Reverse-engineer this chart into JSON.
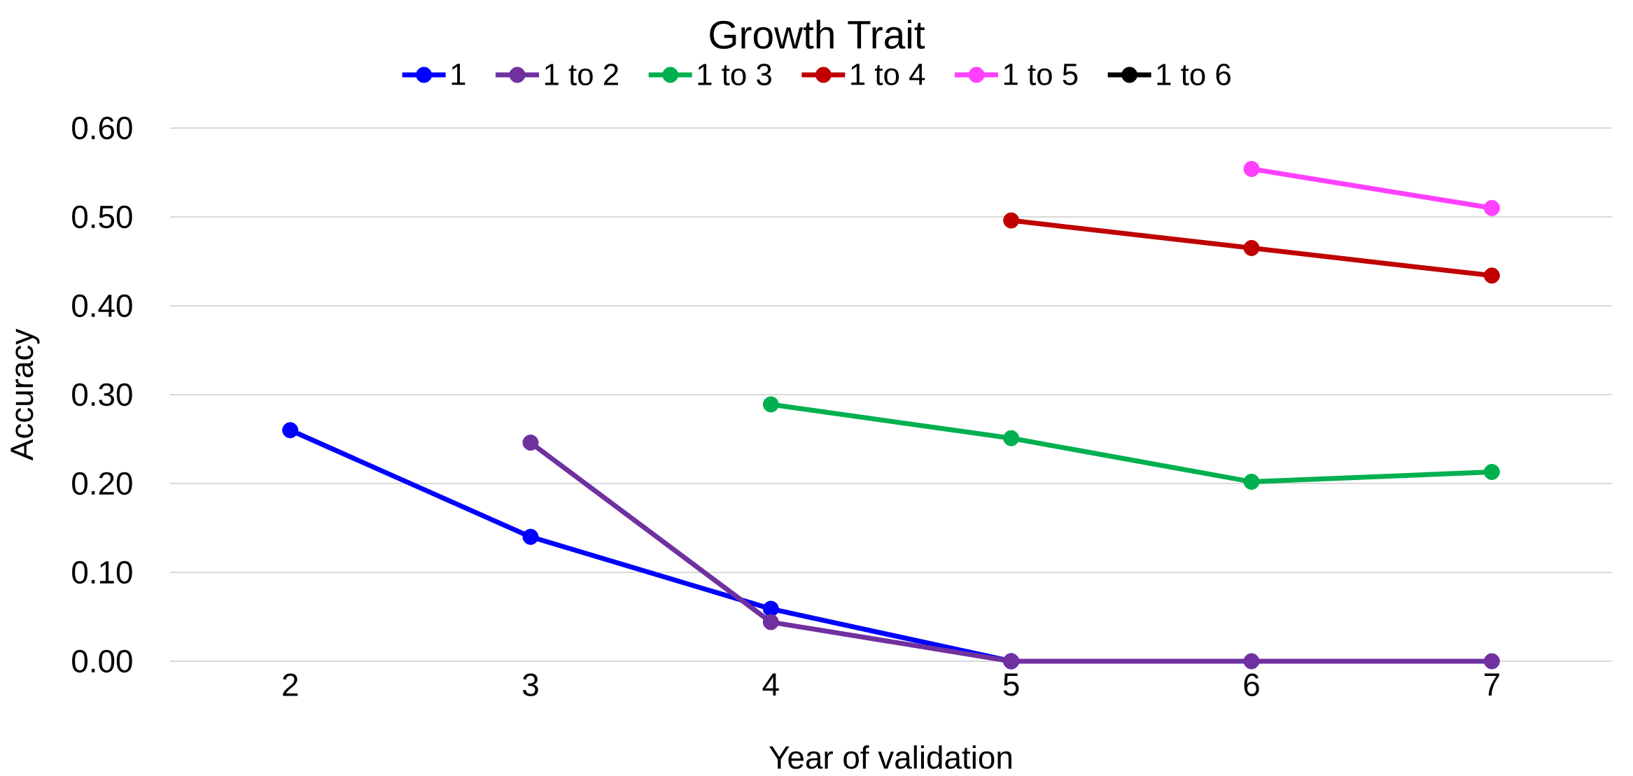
{
  "chart_data": {
    "type": "line",
    "title": "Growth Trait",
    "xlabel": "Year of validation",
    "ylabel": "Accuracy",
    "categories": [
      "2",
      "3",
      "4",
      "5",
      "6",
      "7"
    ],
    "ylim": [
      0,
      0.6
    ],
    "yticks": [
      {
        "value": 0,
        "label": "0.00"
      },
      {
        "value": 0.1,
        "label": "0.10"
      },
      {
        "value": 0.2,
        "label": "0.20"
      },
      {
        "value": 0.3,
        "label": "0.30"
      },
      {
        "value": 0.4,
        "label": "0.40"
      },
      {
        "value": 0.5,
        "label": "0.50"
      },
      {
        "value": 0.6,
        "label": "0.60"
      }
    ],
    "grid": "y",
    "legend": "top",
    "marker": "circle",
    "line_style": "solid",
    "series": [
      {
        "name": "1",
        "color": "#0000ff",
        "values": [
          0.26,
          0.14,
          0.059,
          0,
          null,
          null
        ]
      },
      {
        "name": "1 to 2",
        "color": "#7030a0",
        "values": [
          null,
          0.246,
          0.044,
          0,
          0,
          0
        ]
      },
      {
        "name": "1 to 3",
        "color": "#00b050",
        "values": [
          null,
          null,
          0.289,
          0.251,
          0.202,
          0.213
        ]
      },
      {
        "name": "1 to 4",
        "color": "#c00000",
        "values": [
          null,
          null,
          null,
          0.496,
          0.465,
          0.434
        ]
      },
      {
        "name": "1 to 5",
        "color": "#ff40ff",
        "values": [
          null,
          null,
          null,
          null,
          0.554,
          0.51
        ]
      },
      {
        "name": "1 to 6",
        "color": "#000000",
        "values": [
          null,
          null,
          null,
          null,
          null,
          null
        ]
      }
    ]
  }
}
